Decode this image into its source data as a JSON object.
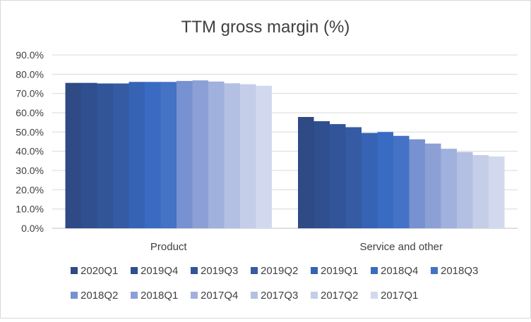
{
  "chart_data": {
    "type": "bar",
    "title": "TTM gross margin (%)",
    "categories": [
      "Product",
      "Service and other"
    ],
    "ylim": [
      0,
      90
    ],
    "y_ticks": [
      "0.0%",
      "10.0%",
      "20.0%",
      "30.0%",
      "40.0%",
      "50.0%",
      "60.0%",
      "70.0%",
      "80.0%",
      "90.0%"
    ],
    "grid": true,
    "legend_position": "bottom",
    "series": [
      {
        "name": "2020Q1",
        "color": "#2F4A85",
        "values": [
          75.5,
          57.8
        ]
      },
      {
        "name": "2019Q4",
        "color": "#2F4F8F",
        "values": [
          75.5,
          55.6
        ]
      },
      {
        "name": "2019Q3",
        "color": "#315598",
        "values": [
          75.2,
          54.1
        ]
      },
      {
        "name": "2019Q2",
        "color": "#345BA3",
        "values": [
          75.2,
          52.5
        ]
      },
      {
        "name": "2019Q1",
        "color": "#3663B4",
        "values": [
          76.0,
          49.5
        ]
      },
      {
        "name": "2018Q4",
        "color": "#3A6BC2",
        "values": [
          76.0,
          50.0
        ]
      },
      {
        "name": "2018Q3",
        "color": "#4472C4",
        "values": [
          76.0,
          48.0
        ]
      },
      {
        "name": "2018Q2",
        "color": "#7891D0",
        "values": [
          76.5,
          46.2
        ]
      },
      {
        "name": "2018Q1",
        "color": "#8CA0D6",
        "values": [
          76.8,
          44.0
        ]
      },
      {
        "name": "2017Q4",
        "color": "#A1B1DD",
        "values": [
          76.2,
          41.3
        ]
      },
      {
        "name": "2017Q3",
        "color": "#B4C0E3",
        "values": [
          75.3,
          39.6
        ]
      },
      {
        "name": "2017Q2",
        "color": "#C5CEE8",
        "values": [
          74.8,
          38.0
        ]
      },
      {
        "name": "2017Q1",
        "color": "#D2D9EE",
        "values": [
          74.0,
          37.3
        ]
      }
    ]
  }
}
